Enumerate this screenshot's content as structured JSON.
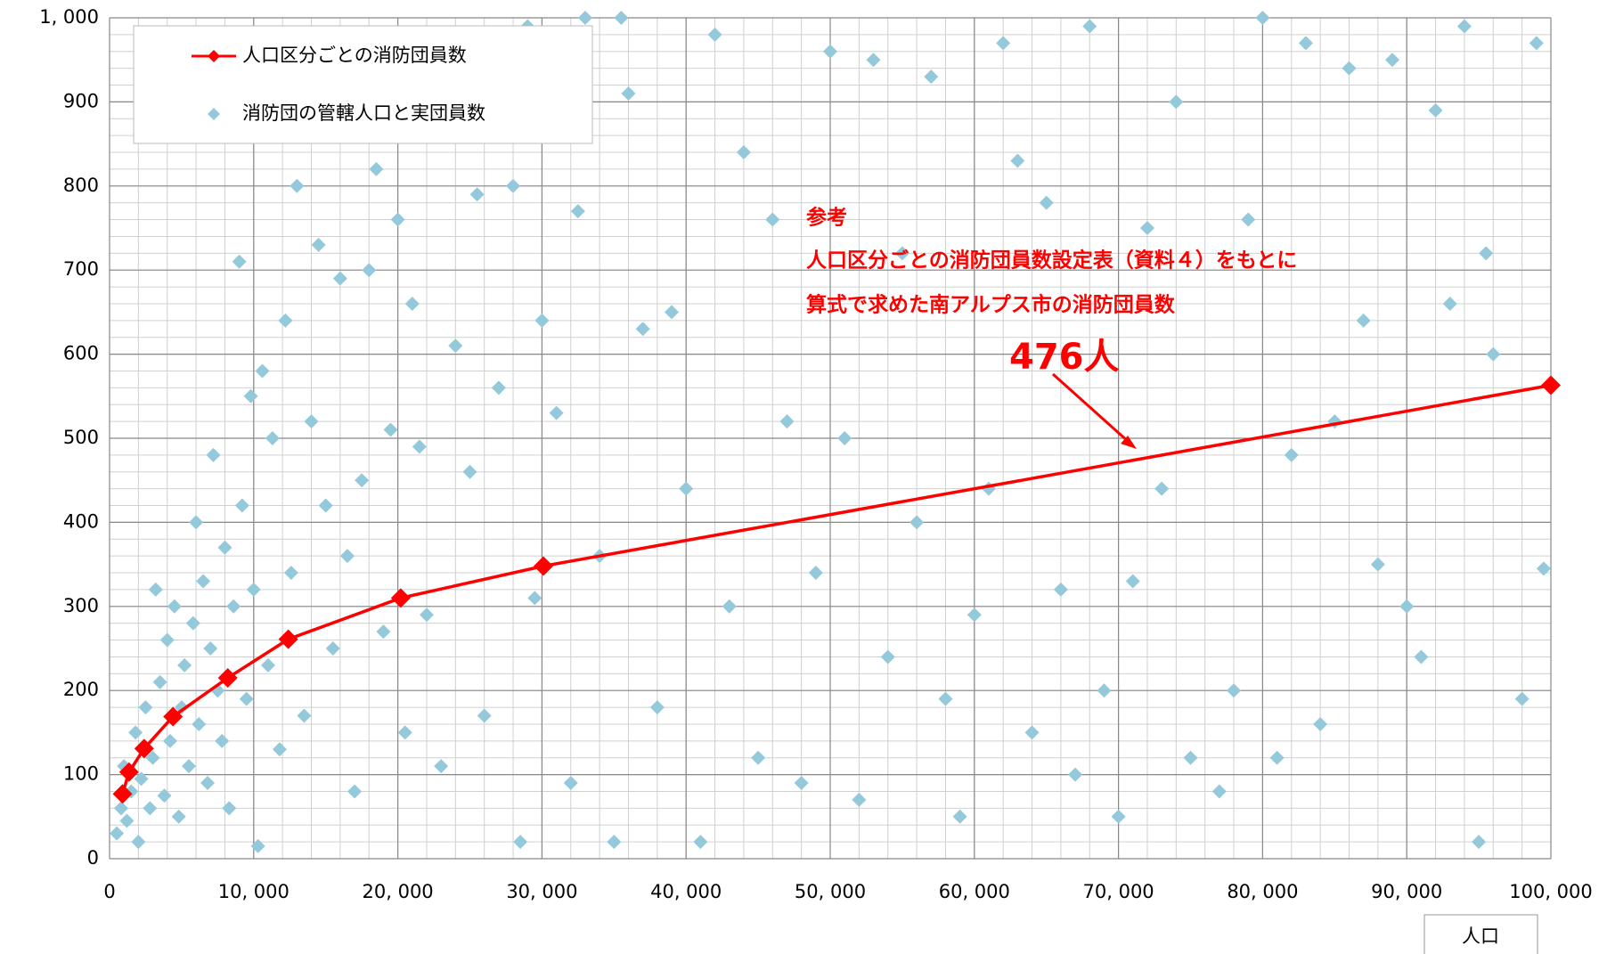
{
  "chart_data": {
    "type": "scatter",
    "x_label": "人口",
    "xlim": [
      0,
      100000
    ],
    "ylim": [
      0,
      1000
    ],
    "xticks": [
      0,
      {
        "value": 10000,
        "label": "10, 000"
      },
      {
        "value": 20000,
        "label": "20, 000"
      },
      {
        "value": 30000,
        "label": "30, 000"
      },
      {
        "value": 40000,
        "label": "40, 000"
      },
      {
        "value": 50000,
        "label": "50, 000"
      },
      {
        "value": 60000,
        "label": "60, 000"
      },
      {
        "value": 70000,
        "label": "70, 000"
      },
      {
        "value": 80000,
        "label": "80, 000"
      },
      {
        "value": 90000,
        "label": "90, 000"
      },
      {
        "value": 100000,
        "label": "100, 000"
      }
    ],
    "yticks": [
      0,
      100,
      200,
      300,
      400,
      500,
      600,
      700,
      800,
      900,
      {
        "value": 1000,
        "label": "1, 000"
      }
    ],
    "grid": true,
    "minor_grid": {
      "x": 2000,
      "y": 20
    },
    "legend": "upper left",
    "series": [
      {
        "name": "人口区分ごとの消防団員数",
        "type": "line",
        "color": "#ff0000",
        "x": [
          900,
          1350,
          2400,
          4400,
          8200,
          12400,
          20200,
          30100,
          100000
        ],
        "values": [
          77,
          103,
          131,
          169,
          215,
          261,
          310,
          348,
          563
        ]
      },
      {
        "name": "消防団の管轄人口と実団員数",
        "type": "scatter",
        "color": "#93c9db",
        "x": [
          500,
          800,
          1000,
          1200,
          1500,
          1800,
          2000,
          2200,
          2500,
          2800,
          3000,
          3200,
          3500,
          3800,
          4000,
          4200,
          4500,
          4800,
          5000,
          5200,
          5500,
          5800,
          6000,
          6200,
          6500,
          6800,
          7000,
          7200,
          7500,
          7800,
          8000,
          8300,
          8600,
          9000,
          9200,
          9500,
          9800,
          10000,
          10300,
          10600,
          11000,
          11300,
          11800,
          12200,
          12600,
          13000,
          13500,
          14000,
          14500,
          15000,
          15500,
          16000,
          16500,
          17000,
          17500,
          18000,
          18500,
          19000,
          19500,
          20000,
          20500,
          21000,
          21500,
          22000,
          23000,
          24000,
          25000,
          25500,
          26000,
          27000,
          28000,
          28500,
          29000,
          29500,
          30000,
          31000,
          32000,
          32500,
          33000,
          34000,
          35000,
          35500,
          36000,
          37000,
          38000,
          39000,
          40000,
          41000,
          42000,
          43000,
          44000,
          45000,
          46000,
          47000,
          48000,
          49000,
          50000,
          51000,
          52000,
          53000,
          54000,
          55000,
          56000,
          57000,
          58000,
          59000,
          60000,
          61000,
          62000,
          63000,
          64000,
          65000,
          66000,
          67000,
          68000,
          69000,
          70000,
          71000,
          72000,
          73000,
          74000,
          75000,
          77000,
          78000,
          79000,
          80000,
          81000,
          82000,
          83000,
          84000,
          85000,
          86000,
          87000,
          88000,
          89000,
          90000,
          91000,
          92000,
          93000,
          94000,
          95000,
          95500,
          96000,
          98000,
          99000,
          99500
        ],
        "values": [
          30,
          60,
          110,
          45,
          80,
          150,
          20,
          95,
          180,
          60,
          120,
          320,
          210,
          75,
          260,
          140,
          300,
          50,
          180,
          230,
          110,
          280,
          400,
          160,
          330,
          90,
          250,
          480,
          200,
          140,
          370,
          60,
          300,
          710,
          420,
          190,
          550,
          320,
          15,
          580,
          230,
          500,
          130,
          640,
          340,
          800,
          170,
          520,
          730,
          420,
          250,
          690,
          360,
          80,
          450,
          700,
          820,
          270,
          510,
          760,
          150,
          660,
          490,
          290,
          110,
          610,
          460,
          790,
          170,
          560,
          800,
          20,
          990,
          310,
          640,
          530,
          90,
          770,
          1000,
          360,
          20,
          1000,
          910,
          630,
          180,
          650,
          440,
          20,
          980,
          300,
          840,
          120,
          760,
          520,
          90,
          340,
          960,
          500,
          70,
          950,
          240,
          720,
          400,
          930,
          190,
          50,
          290,
          440,
          970,
          830,
          150,
          780,
          320,
          100,
          990,
          200,
          50,
          330,
          750,
          440,
          900,
          120,
          80,
          200,
          760,
          1000,
          120,
          480,
          970,
          160,
          520,
          940,
          640,
          350,
          950,
          300,
          240,
          890,
          660,
          990,
          20,
          720,
          600,
          190,
          970,
          345
        ]
      }
    ],
    "annotations": [
      "参考",
      "人口区分ごとの消防団員数設定表（資料４）をもとに",
      "算式で求めた南アルプス市の消防団員数",
      "476人"
    ]
  }
}
